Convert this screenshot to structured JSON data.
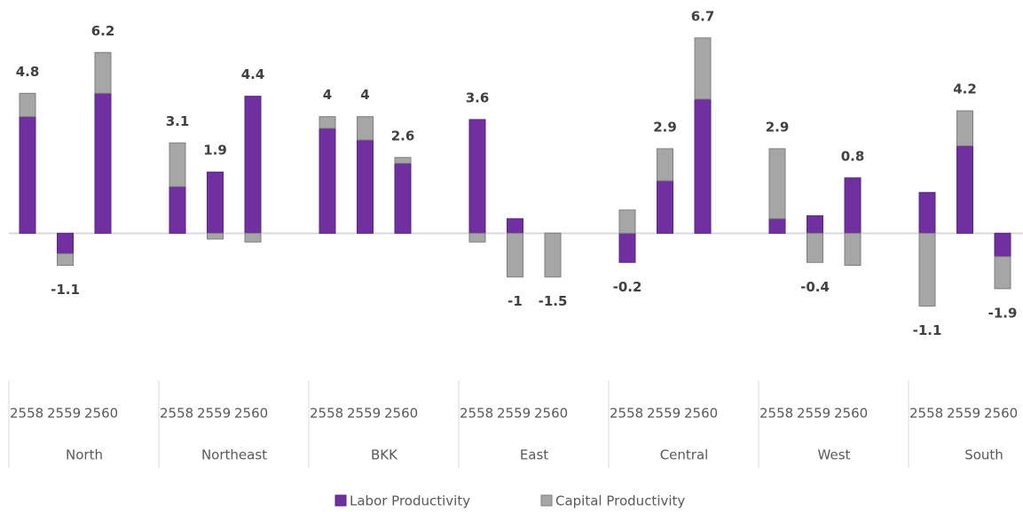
{
  "chart_data": {
    "type": "bar",
    "stacked": true,
    "groups": [
      "North",
      "Northeast",
      "BKK",
      "East",
      "Central",
      "West",
      "South"
    ],
    "categories": [
      "2558",
      "2559",
      "2560",
      "2558",
      "2559",
      "2560",
      "2558",
      "2559",
      "2560",
      "2558",
      "2559",
      "2560",
      "2558",
      "2559",
      "2560",
      "2558",
      "2559",
      "2560",
      "2558",
      "2559",
      "2560"
    ],
    "series": [
      {
        "name": "Labor Productivity",
        "color": "#7030a0",
        "values": [
          4.0,
          -0.7,
          4.8,
          1.6,
          2.1,
          4.7,
          3.6,
          3.2,
          2.4,
          3.9,
          0.5,
          0.0,
          -1.0,
          1.8,
          4.6,
          0.5,
          0.6,
          1.9,
          1.4,
          3.0,
          -0.8
        ]
      },
      {
        "name": "Capital Productivity",
        "color": "#a6a6a6",
        "values": [
          0.8,
          -0.4,
          1.4,
          1.5,
          -0.2,
          -0.3,
          0.4,
          0.8,
          0.2,
          -0.3,
          -1.5,
          -1.5,
          0.8,
          1.1,
          2.1,
          2.4,
          -1.0,
          -1.1,
          -2.5,
          1.2,
          -1.1
        ]
      }
    ],
    "totals": [
      4.8,
      -1.1,
      6.2,
      3.1,
      1.9,
      4.4,
      4.0,
      4.0,
      2.6,
      3.6,
      -1.0,
      -1.5,
      -0.2,
      2.9,
      6.7,
      2.9,
      -0.4,
      0.8,
      -1.1,
      4.2,
      -1.9
    ],
    "ylim": [
      -4,
      8
    ]
  }
}
